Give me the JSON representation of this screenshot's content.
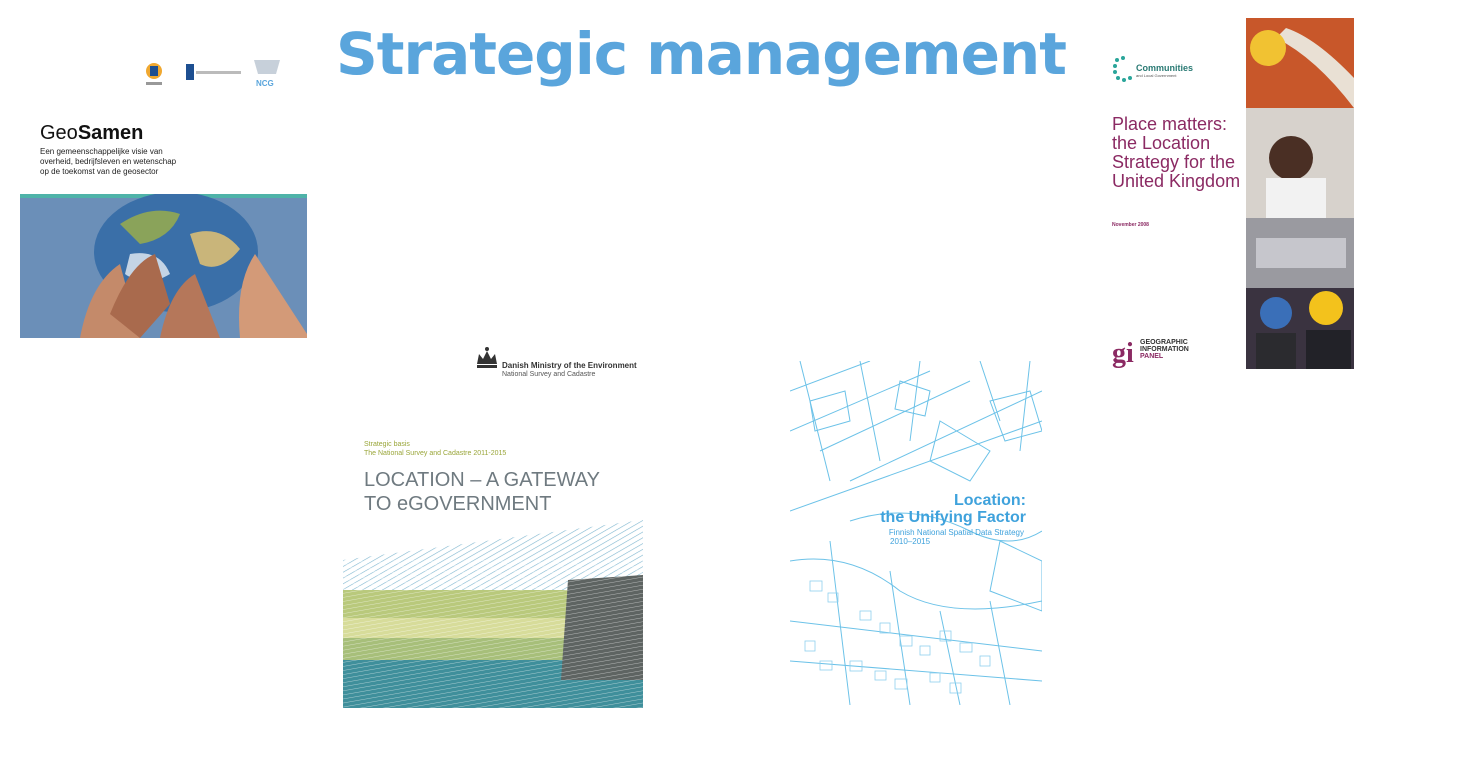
{
  "page": {
    "title": "Strategic management",
    "title_color": "#5aa5dc"
  },
  "geosamen": {
    "title_light": "Geo",
    "title_bold": "Samen",
    "subtitle_1": "Een gemeenschappelijke visie van",
    "subtitle_2": "overheid, bedrijfsleven en wetenschap",
    "subtitle_3": "op de toekomst van de geosector",
    "logo_label": "NCG",
    "image": "globe-held-by-hands"
  },
  "uk": {
    "logo_name": "Communities",
    "logo_sub": "and Local Government",
    "title_1": "Place matters:",
    "title_2": "the Location",
    "title_3": "Strategy for the",
    "title_4": "United Kingdom",
    "date": "November 2008",
    "gi_mark": "gi",
    "gi_1": "GEOGRAPHIC",
    "gi_2": "INFORMATION",
    "gi_3": "PANEL",
    "accent": "#8b2a63",
    "image": "emergency-workers-collage"
  },
  "danish": {
    "ministry": "Danish Ministry of the Environment",
    "agency": "National Survey and Cadastre",
    "basis_1": "Strategic basis",
    "basis_2": "The National Survey and Cadastre 2011-2015",
    "title_1": "LOCATION – A GATEWAY",
    "title_2": "TO eGOVERNMENT"
  },
  "finnish": {
    "title_1": "Location:",
    "title_2": "the Unifying Factor",
    "sub_1": "Finnish National Spatial Data Strategy",
    "sub_2": "2010–2015",
    "accent": "#3fa2dc"
  }
}
